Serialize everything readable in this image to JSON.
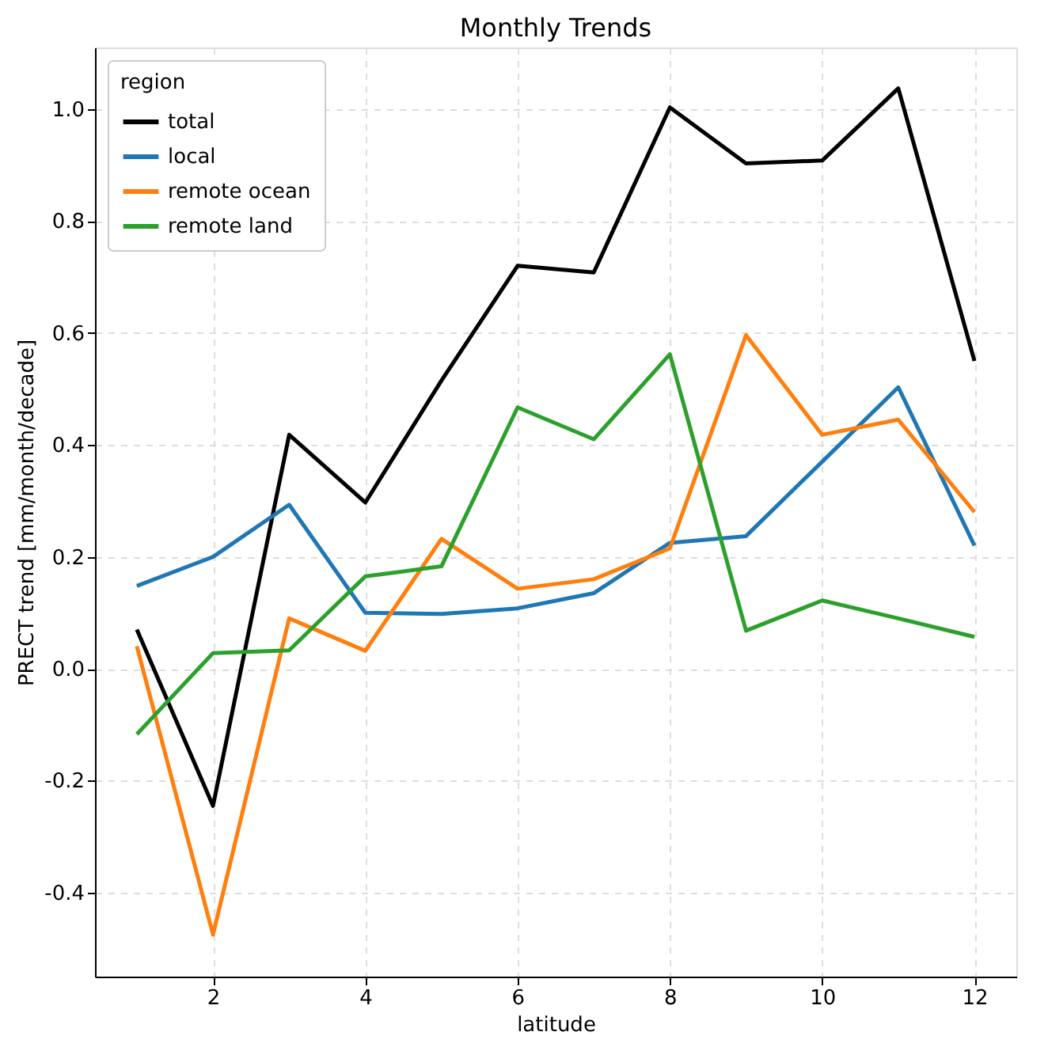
{
  "chart_data": {
    "type": "line",
    "title": "Monthly Trends",
    "xlabel": "latitude",
    "ylabel": "PRECT trend [mm/month/decade]",
    "legend_title": "region",
    "legend": "top left",
    "grid": true,
    "line_style": "solid",
    "marker": "none",
    "x": [
      1,
      2,
      3,
      4,
      5,
      6,
      7,
      8,
      9,
      10,
      11,
      12
    ],
    "xlim": [
      0.45,
      12.55
    ],
    "xticks": [
      2,
      4,
      6,
      8,
      10,
      12
    ],
    "ylim": [
      -0.55,
      1.11
    ],
    "yticks": [
      -0.4,
      -0.2,
      {
        "value": 0,
        "label": "0.0"
      },
      0.2,
      0.4,
      0.6,
      0.8,
      {
        "value": 1,
        "label": "1.0"
      }
    ],
    "series": [
      {
        "name": "total",
        "color": "#000000",
        "values": [
          0.07,
          -0.245,
          0.418,
          0.297,
          0.515,
          0.72,
          0.708,
          1.003,
          0.903,
          0.908,
          1.037,
          0.55
        ]
      },
      {
        "name": "local",
        "color": "#1f77b4",
        "values": [
          0.148,
          0.2,
          0.293,
          0.1,
          0.098,
          0.108,
          0.135,
          0.225,
          0.237,
          0.37,
          0.503,
          0.22
        ]
      },
      {
        "name": "remote ocean",
        "color": "#ff7f0e",
        "values": [
          0.04,
          -0.475,
          0.09,
          0.032,
          0.232,
          0.143,
          0.16,
          0.215,
          0.596,
          0.418,
          0.445,
          0.28
        ]
      },
      {
        "name": "remote land",
        "color": "#2ca02c",
        "values": [
          -0.117,
          0.028,
          0.033,
          0.165,
          0.183,
          0.467,
          0.41,
          0.562,
          0.068,
          0.122,
          0.09,
          0.057
        ]
      }
    ]
  }
}
